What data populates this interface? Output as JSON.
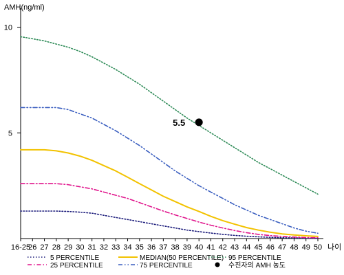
{
  "chart_data": {
    "type": "line",
    "ylabel": "AMH(ng/ml)",
    "xlabel": "나이",
    "x": [
      "16-25",
      "26",
      "27",
      "28",
      "29",
      "30",
      "31",
      "32",
      "33",
      "34",
      "35",
      "36",
      "37",
      "38",
      "39",
      "40",
      "41",
      "42",
      "43",
      "44",
      "45",
      "46",
      "47",
      "48",
      "49",
      "50"
    ],
    "y_ticks": [
      5,
      10
    ],
    "ylim": [
      0,
      10.7
    ],
    "series": [
      {
        "name": "5 PERCENTILE",
        "color": "#1a1a7a",
        "dash": "dot",
        "values": [
          1.3,
          1.3,
          1.3,
          1.3,
          1.28,
          1.25,
          1.2,
          1.1,
          1.0,
          0.9,
          0.8,
          0.7,
          0.6,
          0.5,
          0.4,
          0.33,
          0.26,
          0.2,
          0.15,
          0.11,
          0.08,
          0.06,
          0.04,
          0.03,
          0.02,
          0.01
        ]
      },
      {
        "name": "75 PERCENTILE",
        "color": "#3b5fc0",
        "dash": "dashdotdot",
        "values": [
          6.2,
          6.2,
          6.2,
          6.2,
          6.1,
          5.9,
          5.7,
          5.4,
          5.1,
          4.75,
          4.4,
          4.0,
          3.6,
          3.2,
          2.85,
          2.5,
          2.2,
          1.9,
          1.6,
          1.35,
          1.1,
          0.9,
          0.7,
          0.5,
          0.35,
          0.25
        ]
      },
      {
        "name": "25 PERCENTILE",
        "color": "#e0148c",
        "dash": "dashdot",
        "values": [
          2.6,
          2.6,
          2.6,
          2.6,
          2.55,
          2.45,
          2.35,
          2.2,
          2.05,
          1.9,
          1.7,
          1.5,
          1.3,
          1.12,
          0.95,
          0.78,
          0.63,
          0.5,
          0.38,
          0.28,
          0.2,
          0.14,
          0.1,
          0.07,
          0.05,
          0.04
        ]
      },
      {
        "name": "95 PERCENTILE",
        "color": "#2e8b57",
        "dash": "dot",
        "values": [
          9.55,
          9.45,
          9.35,
          9.2,
          9.05,
          8.85,
          8.6,
          8.3,
          8.0,
          7.65,
          7.3,
          6.9,
          6.5,
          6.1,
          5.7,
          5.35,
          5.0,
          4.65,
          4.3,
          3.95,
          3.6,
          3.3,
          3.0,
          2.7,
          2.4,
          2.1
        ]
      },
      {
        "name": "MEDIAN(50 PERCENTILE)",
        "color": "#f2c200",
        "dash": "solid",
        "values": [
          4.2,
          4.2,
          4.2,
          4.15,
          4.05,
          3.9,
          3.7,
          3.45,
          3.2,
          2.9,
          2.6,
          2.3,
          2.0,
          1.75,
          1.5,
          1.28,
          1.05,
          0.85,
          0.68,
          0.52,
          0.4,
          0.3,
          0.22,
          0.17,
          0.13,
          0.1
        ]
      }
    ],
    "patient_point": {
      "name": "수진자의 AMH 농도",
      "x": "40",
      "y": 5.5,
      "label": "5.5",
      "color": "#000000"
    },
    "legend": {
      "placement": "bottom",
      "order": [
        "5 PERCENTILE",
        "25 PERCENTILE",
        "MEDIAN(50 PERCENTILE)",
        "75 PERCENTILE",
        "95 PERCENTILE",
        "수진자의 AMH 농도"
      ]
    },
    "grid": false
  }
}
